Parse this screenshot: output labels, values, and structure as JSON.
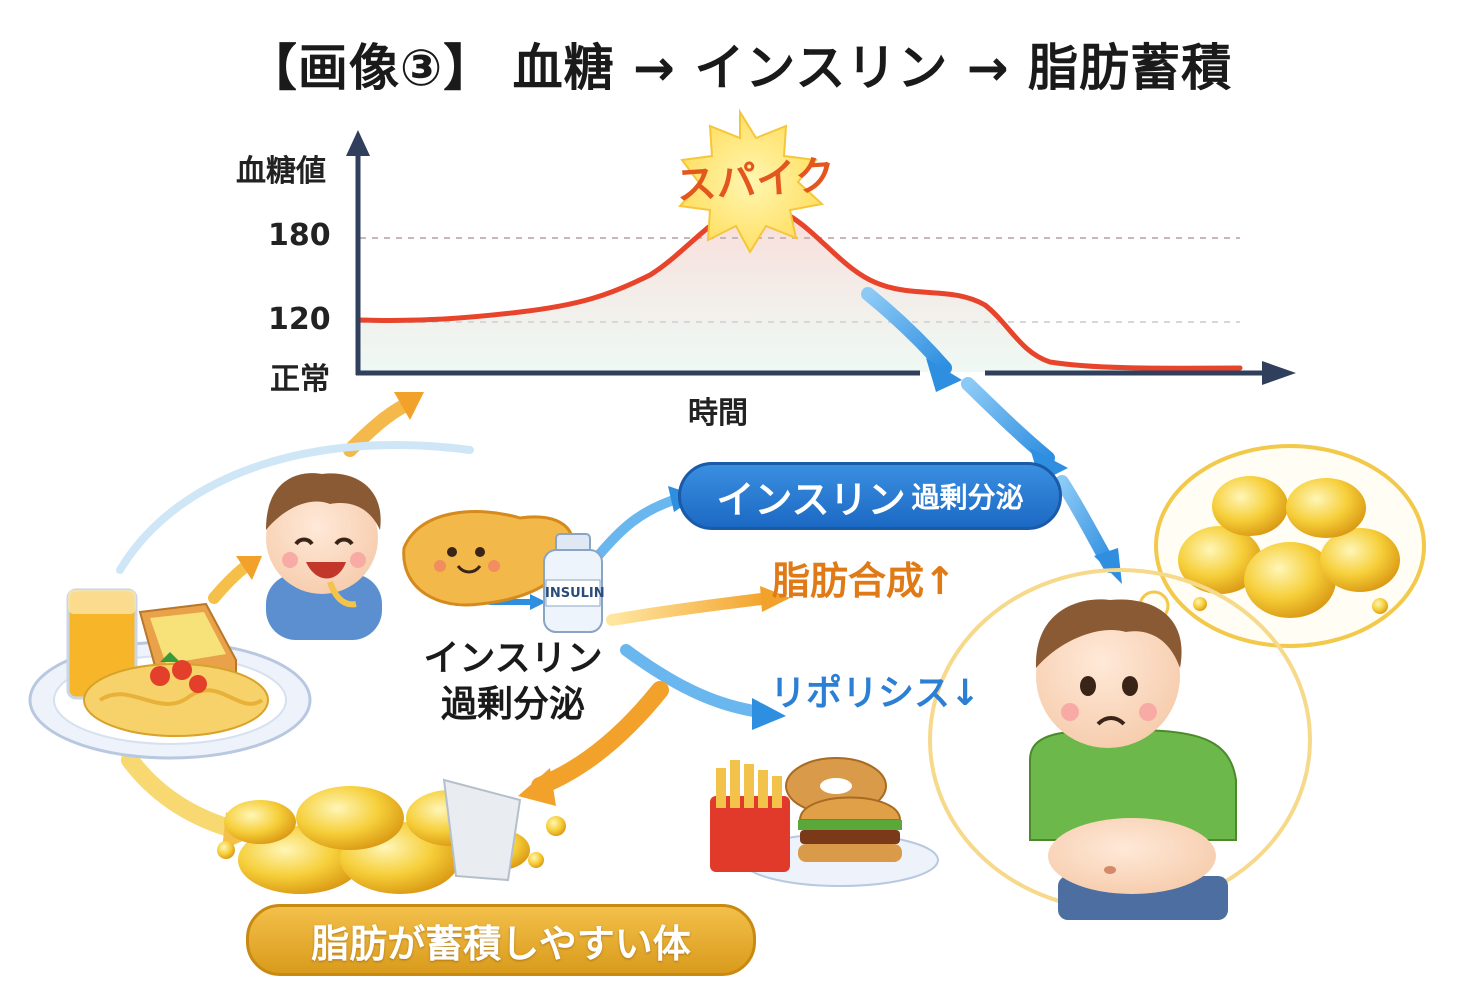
{
  "title": "【画像③】 血糖 → インスリン → 脂肪蓄積",
  "chart": {
    "y_axis_label": "血糖値",
    "y_ticks": [
      "180",
      "120",
      "正常"
    ],
    "x_axis_label": "時間",
    "spike_label": "スパイク"
  },
  "labels": {
    "insulin_pill_main": "インスリン",
    "insulin_pill_sub": "過剰分泌",
    "insulin_text_line1": "インスリン",
    "insulin_text_line2": "過剰分泌",
    "fat_synthesis": "脂肪合成↑",
    "lipolysis": "リポリシス↓",
    "bottle": "INSULIN",
    "bottom_pill": "脂肪が蓄積しやすい体"
  },
  "colors": {
    "curve": "#e8442c",
    "axis": "#2f3f5c",
    "blue_arrow": "#3a9be8",
    "orange_arrow": "#f2a92a",
    "fat_yellow": "#f6cf3a"
  }
}
